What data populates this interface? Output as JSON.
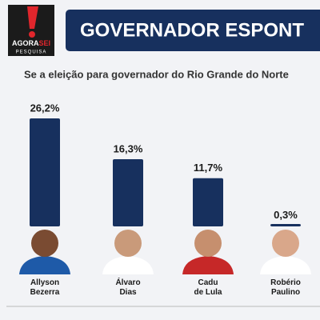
{
  "chart_data": {
    "type": "bar",
    "logo": {
      "word_a": "AGORA",
      "word_b": "SEI",
      "tagline": "PESQUISA"
    },
    "title": "GOVERNADOR ESPONT",
    "subtitle": "Se a eleição para governador do Rio Grande do Norte",
    "categories": [
      "Allyson\nBezerra",
      "Álvaro\nDias",
      "Cadu\nde Lula",
      "Robério\nPaulino"
    ],
    "values": [
      26.2,
      16.3,
      11.7,
      0.3
    ],
    "value_labels": [
      "26,2%",
      "16,3%",
      "11,7%",
      "0,3%"
    ],
    "color": "#17305e"
  }
}
